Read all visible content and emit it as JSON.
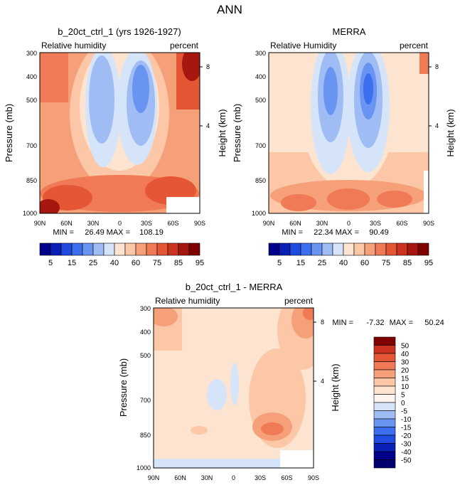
{
  "page_title": "ANN",
  "colors": {
    "neg5": "#00008b",
    "neg4": "#0a1fb5",
    "neg3": "#1f4be0",
    "neg2": "#3c6ef0",
    "neg1": "#6a94f2",
    "neg0": "#9fbcf4",
    "neu": "#d6e4fa",
    "pos0": "#fde4d0",
    "pos1": "#fbc7a6",
    "pos2": "#f6a07a",
    "pos3": "#ef7a55",
    "pos4": "#e55635",
    "pos5": "#cc3220",
    "pos6": "#a8170f",
    "pos7": "#800000"
  },
  "chart_data": [
    {
      "type": "heatmap",
      "title": "b_20ct_ctrl_1 (yrs 1926-1927)",
      "subtitle_left": "Relative humidity",
      "subtitle_right": "percent",
      "ylabel": "Pressure (mb)",
      "ylabel_right": "Height (km)",
      "x_ticks": [
        "90N",
        "60N",
        "30N",
        "0",
        "30S",
        "60S",
        "90S"
      ],
      "y_ticks": [
        "300",
        "400",
        "500",
        "700",
        "850",
        "1000"
      ],
      "y_right_ticks": [
        "8",
        "4"
      ],
      "ylim": [
        1000,
        300
      ],
      "min_label": "MIN =",
      "min_value": "26.49",
      "max_label": "MAX =",
      "max_value": "108.19",
      "colorbar_labels": [
        "5",
        "15",
        "25",
        "40",
        "60",
        "75",
        "85",
        "95"
      ]
    },
    {
      "type": "heatmap",
      "title": "MERRA",
      "subtitle_left": "Relative Humidity",
      "subtitle_right": "percent",
      "ylabel": "Pressure (mb)",
      "ylabel_right": "Height (km)",
      "x_ticks": [
        "90N",
        "60N",
        "30N",
        "0",
        "30S",
        "60S",
        "90S"
      ],
      "y_ticks": [
        "300",
        "400",
        "500",
        "700",
        "850",
        "1000"
      ],
      "y_right_ticks": [
        "8",
        "4"
      ],
      "ylim": [
        1000,
        300
      ],
      "min_label": "MIN =",
      "min_value": "22.34",
      "max_label": "MAX =",
      "max_value": "90.49",
      "colorbar_labels": [
        "5",
        "15",
        "25",
        "40",
        "60",
        "75",
        "85",
        "95"
      ]
    },
    {
      "type": "heatmap",
      "title": "b_20ct_ctrl_1 - MERRA",
      "subtitle_left": "Relative humidity",
      "subtitle_right": "percent",
      "ylabel": "Pressure (mb)",
      "ylabel_right": "Height (km)",
      "x_ticks": [
        "90N",
        "60N",
        "30N",
        "0",
        "30S",
        "60S",
        "90S"
      ],
      "y_ticks": [
        "300",
        "400",
        "500",
        "700",
        "850",
        "1000"
      ],
      "y_right_ticks": [
        "8",
        "4"
      ],
      "ylim": [
        1000,
        300
      ],
      "min_label": "MIN =",
      "min_value": "-7.32",
      "max_label": "MAX =",
      "max_value": "50.24",
      "colorbar_labels": [
        "50",
        "40",
        "30",
        "20",
        "15",
        "10",
        "5",
        "0",
        "-5",
        "-10",
        "-15",
        "-20",
        "-30",
        "-40",
        "-50"
      ]
    }
  ]
}
